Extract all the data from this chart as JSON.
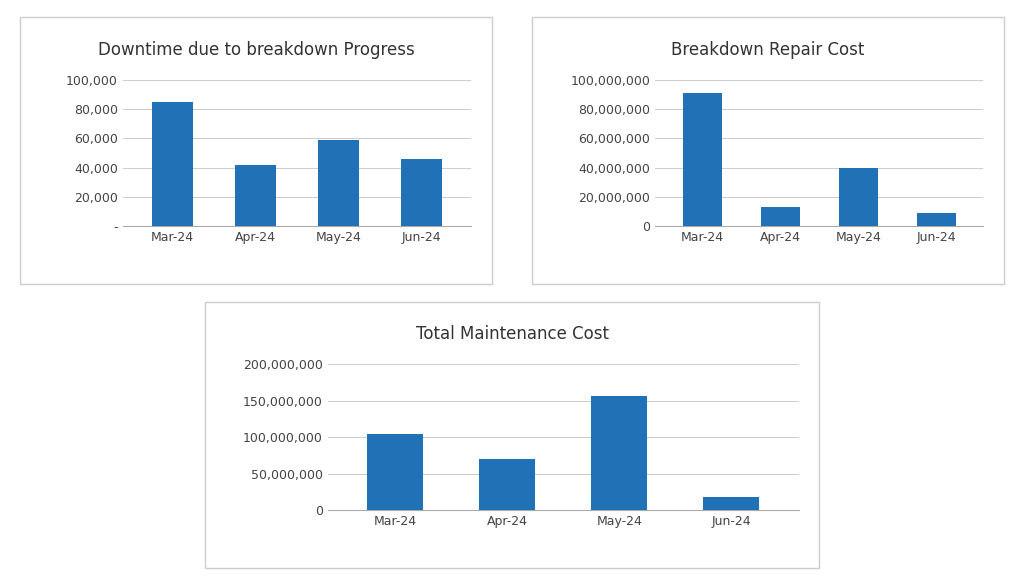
{
  "categories": [
    "Mar-24",
    "Apr-24",
    "May-24",
    "Jun-24"
  ],
  "chart1": {
    "title": "Downtime due to breakdown Progress",
    "values": [
      85000,
      42000,
      59000,
      46000
    ],
    "ylim": [
      0,
      115000
    ],
    "yticks": [
      0,
      20000,
      40000,
      60000,
      80000,
      100000
    ],
    "ytick_labels": [
      "-",
      "20,000",
      "40,000",
      "60,000",
      "80,000",
      "100,000"
    ]
  },
  "chart2": {
    "title": "Breakdown Repair Cost",
    "values": [
      91000000,
      13000000,
      40000000,
      9000000
    ],
    "ylim": [
      0,
      115000000
    ],
    "yticks": [
      0,
      20000000,
      40000000,
      60000000,
      80000000,
      100000000
    ],
    "ytick_labels": [
      "0",
      "20,000,000",
      "40,000,000",
      "60,000,000",
      "80,000,000",
      "100,000,000"
    ]
  },
  "chart3": {
    "title": "Total Maintenance Cost",
    "values": [
      104000000,
      70000000,
      157000000,
      19000000
    ],
    "ylim": [
      0,
      230000000
    ],
    "yticks": [
      0,
      50000000,
      100000000,
      150000000,
      200000000
    ],
    "ytick_labels": [
      "0",
      "50,000,000",
      "100,000,000",
      "150,000,000",
      "200,000,000"
    ]
  },
  "bar_color": "#2071B5",
  "bg_color": "#FFFFFF",
  "grid_color": "#CCCCCC",
  "border_color": "#CCCCCC",
  "title_fontsize": 12,
  "tick_fontsize": 9
}
